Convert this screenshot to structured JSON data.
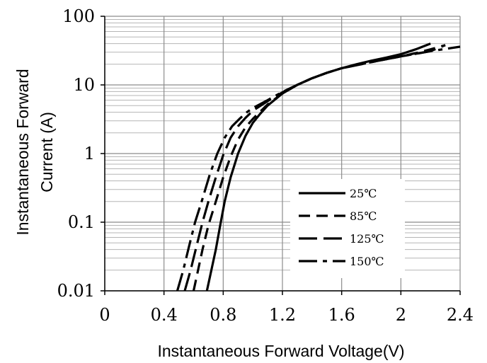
{
  "chart_data": {
    "type": "line",
    "title": "",
    "xlabel": "Instantaneous Forward Voltage(V)",
    "ylabel_lines": [
      "Instantaneous Forward",
      "Current (A)"
    ],
    "xlim": [
      0,
      2.4
    ],
    "ylim": [
      0.01,
      100
    ],
    "yscale": "log",
    "x_ticks": [
      0,
      0.4,
      0.8,
      1.2,
      1.6,
      2,
      2.4
    ],
    "x_tick_labels": [
      "0",
      "0.4",
      "0.8",
      "1.2",
      "1.6",
      "2",
      "2.4"
    ],
    "y_ticks": [
      0.01,
      0.1,
      1,
      10,
      100
    ],
    "y_tick_labels": [
      "0.01",
      "0.1",
      "1",
      "10",
      "100"
    ],
    "grid": true,
    "legend_position": "lower-right",
    "series": [
      {
        "name": "25℃",
        "dash": "solid",
        "x": [
          0.69,
          0.72,
          0.75,
          0.78,
          0.81,
          0.85,
          0.9,
          0.95,
          1.0,
          1.05,
          1.1,
          1.2,
          1.3,
          1.4,
          1.5,
          1.6,
          1.7,
          1.8,
          1.9,
          2.0,
          2.1,
          2.2
        ],
        "y": [
          0.01,
          0.02,
          0.04,
          0.09,
          0.2,
          0.45,
          1.0,
          1.8,
          2.8,
          3.8,
          5.0,
          7.5,
          10,
          12.5,
          15,
          17.5,
          20,
          22.5,
          25,
          28,
          33,
          40
        ]
      },
      {
        "name": "85℃",
        "dash": "dashed",
        "x": [
          0.6,
          0.63,
          0.66,
          0.7,
          0.75,
          0.8,
          0.85,
          0.9,
          0.95,
          1.0,
          1.1,
          1.2,
          1.3,
          1.4,
          1.5,
          1.6,
          1.8,
          2.0,
          2.1,
          2.2,
          2.3
        ],
        "y": [
          0.01,
          0.02,
          0.04,
          0.09,
          0.2,
          0.45,
          0.9,
          1.6,
          2.4,
          3.2,
          5.2,
          7.5,
          10,
          12.5,
          15,
          17.5,
          22,
          26,
          29,
          33,
          38
        ]
      },
      {
        "name": "125℃",
        "dash": "long-dash",
        "x": [
          0.54,
          0.58,
          0.62,
          0.66,
          0.7,
          0.75,
          0.8,
          0.85,
          0.9,
          0.95,
          1.0,
          1.1,
          1.2,
          1.3,
          1.4,
          1.5,
          1.6,
          1.8,
          2.0,
          2.2,
          2.3
        ],
        "y": [
          0.01,
          0.02,
          0.045,
          0.1,
          0.2,
          0.45,
          0.95,
          1.7,
          2.5,
          3.3,
          4.2,
          5.8,
          7.8,
          10,
          12.5,
          15,
          17.5,
          21.5,
          26,
          31,
          38
        ]
      },
      {
        "name": "150℃",
        "dash": "dash-dot",
        "x": [
          0.49,
          0.53,
          0.57,
          0.61,
          0.66,
          0.71,
          0.76,
          0.81,
          0.86,
          0.91,
          0.96,
          1.0,
          1.1,
          1.2,
          1.3,
          1.4,
          1.5,
          1.6,
          1.8,
          2.0,
          2.2,
          2.4
        ],
        "y": [
          0.01,
          0.02,
          0.045,
          0.1,
          0.22,
          0.5,
          1.0,
          1.7,
          2.5,
          3.2,
          4.0,
          4.6,
          6.0,
          7.9,
          10,
          12.5,
          15,
          17.5,
          21.5,
          26,
          31,
          36
        ]
      }
    ]
  }
}
